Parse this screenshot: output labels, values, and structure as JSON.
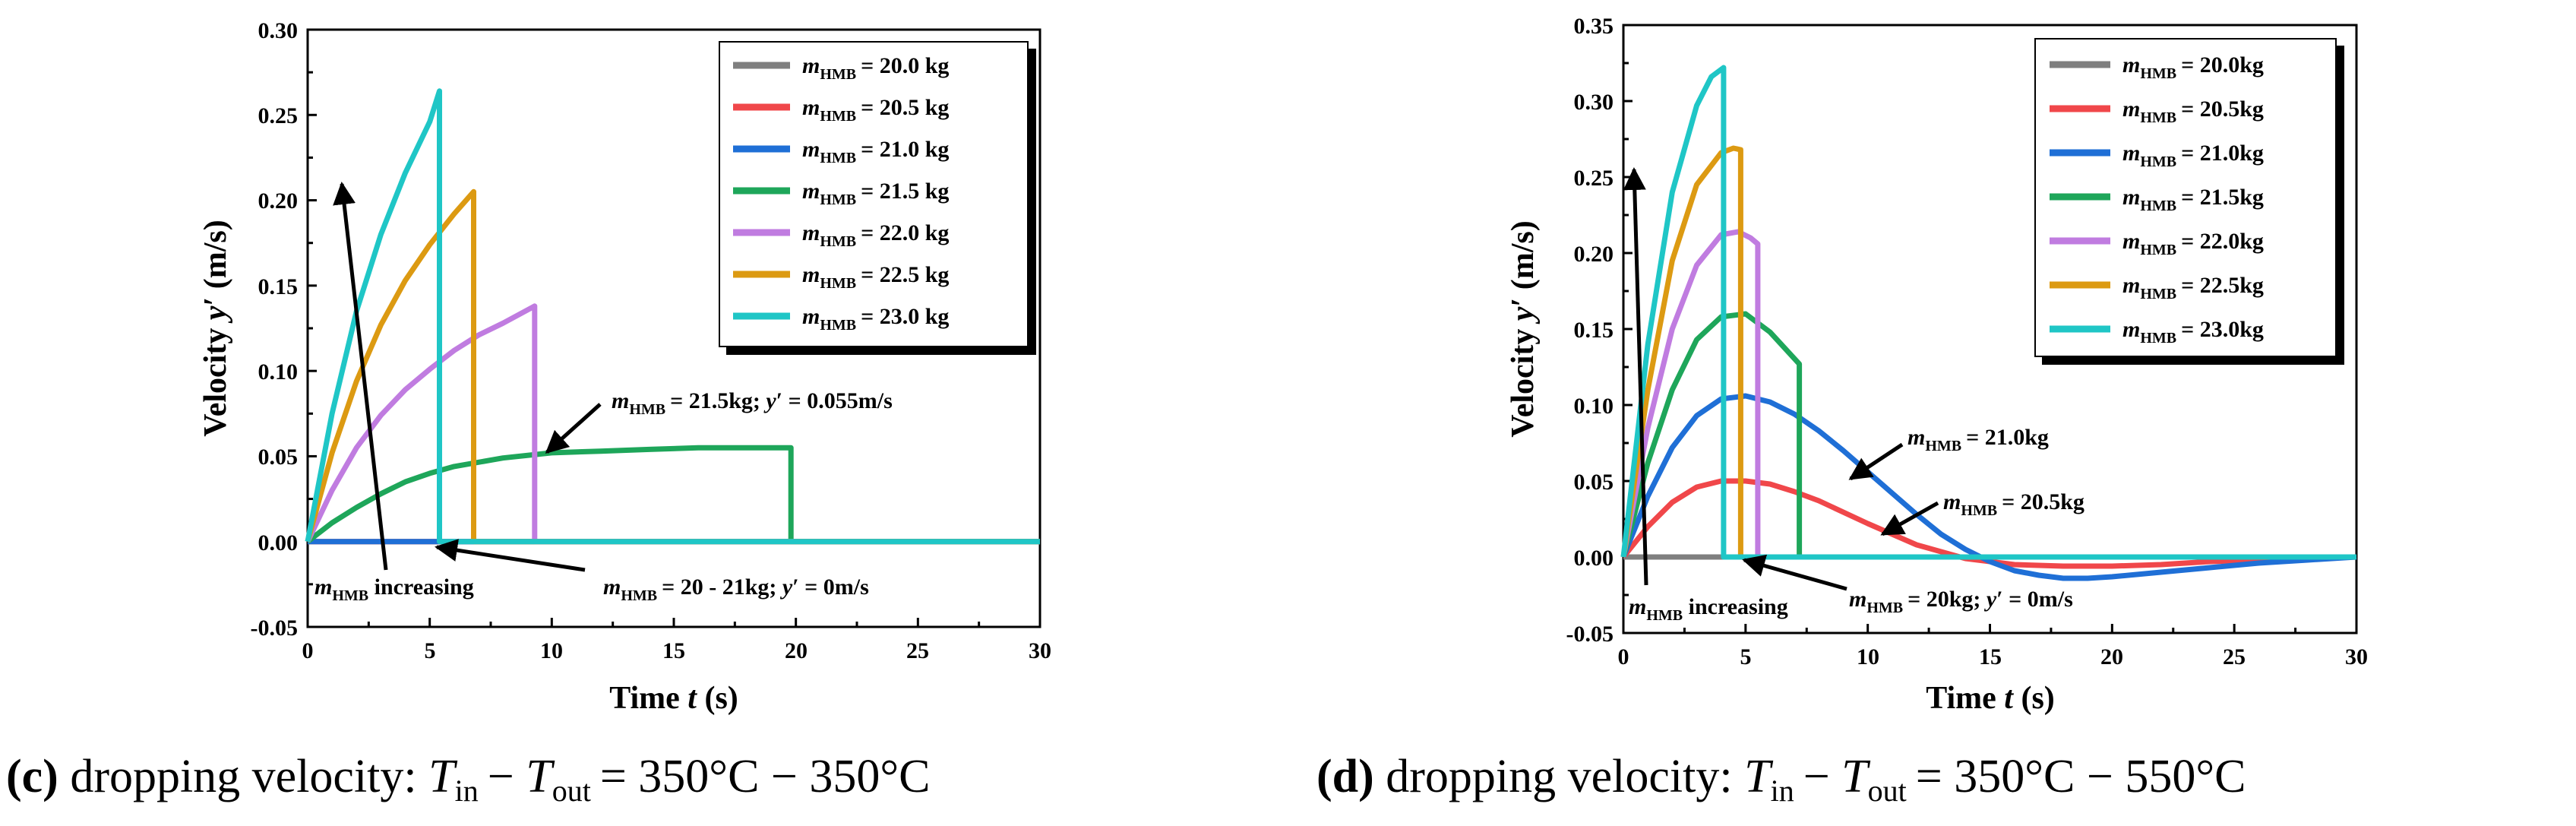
{
  "panels": [
    {
      "id": "c",
      "caption": {
        "letter": "(c)",
        "text": "dropping velocity:",
        "formula_T1": "T",
        "formula_in": "in",
        "formula_minus": "−",
        "formula_T2": "T",
        "formula_out": "out",
        "formula_value": "= 350°C − 350°C"
      },
      "axis_ticks_x": [
        "0",
        "5",
        "10",
        "15",
        "20",
        "25",
        "30"
      ],
      "axis_ticks_y": [
        "-0.05",
        "0.00",
        "0.05",
        "0.10",
        "0.15",
        "0.20",
        "0.25",
        "0.30"
      ],
      "legend": [
        {
          "m": "m",
          "sub": "HMB",
          "value": "= 20.0 kg"
        },
        {
          "m": "m",
          "sub": "HMB",
          "value": "= 20.5 kg"
        },
        {
          "m": "m",
          "sub": "HMB",
          "value": "= 21.0 kg"
        },
        {
          "m": "m",
          "sub": "HMB",
          "value": "= 21.5 kg"
        },
        {
          "m": "m",
          "sub": "HMB",
          "value": "= 22.0 kg"
        },
        {
          "m": "m",
          "sub": "HMB",
          "value": "= 22.5 kg"
        },
        {
          "m": "m",
          "sub": "HMB",
          "value": "= 23.0 kg"
        }
      ],
      "annotations": {
        "a1": {
          "m": "m",
          "sub": "HMB",
          "rest": "= 21.5kg; ",
          "y": "y",
          "prime": "′",
          "tail": " = 0.055m/s"
        },
        "a2": {
          "m": "m",
          "sub": "HMB",
          "rest": "= 20 - 21kg; ",
          "y": "y",
          "prime": "′",
          "tail": " = 0m/s"
        },
        "a3": {
          "m": "m",
          "sub": "HMB",
          "rest": " increasing"
        }
      }
    },
    {
      "id": "d",
      "caption": {
        "letter": "(d)",
        "text": "dropping velocity:",
        "formula_T1": "T",
        "formula_in": "in",
        "formula_minus": "−",
        "formula_T2": "T",
        "formula_out": "out",
        "formula_value": "= 350°C − 550°C"
      },
      "axis_ticks_x": [
        "0",
        "5",
        "10",
        "15",
        "20",
        "25",
        "30"
      ],
      "axis_ticks_y": [
        "-0.05",
        "0.00",
        "0.05",
        "0.10",
        "0.15",
        "0.20",
        "0.25",
        "0.30",
        "0.35"
      ],
      "legend": [
        {
          "m": "m",
          "sub": "HMB",
          "value": "= 20.0kg"
        },
        {
          "m": "m",
          "sub": "HMB",
          "value": "= 20.5kg"
        },
        {
          "m": "m",
          "sub": "HMB",
          "value": "= 21.0kg"
        },
        {
          "m": "m",
          "sub": "HMB",
          "value": "= 21.5kg"
        },
        {
          "m": "m",
          "sub": "HMB",
          "value": "= 22.0kg"
        },
        {
          "m": "m",
          "sub": "HMB",
          "value": "= 22.5kg"
        },
        {
          "m": "m",
          "sub": "HMB",
          "value": "= 23.0kg"
        }
      ],
      "annotations": {
        "a1": {
          "m": "m",
          "sub": "HMB",
          "rest": "= 21.0kg"
        },
        "a2": {
          "m": "m",
          "sub": "HMB",
          "rest": "= 20.5kg"
        },
        "a3": {
          "m": "m",
          "sub": "HMB",
          "rest": "= 20kg; ",
          "y": "y",
          "prime": "′",
          "tail": " = 0m/s"
        },
        "a4": {
          "m": "m",
          "sub": "HMB",
          "rest": " increasing"
        }
      }
    }
  ],
  "axis_labels": {
    "x_word": "Time",
    "x_var": "t",
    "x_unit": "(s)",
    "y_word": "Velocity",
    "y_var": "y",
    "y_prime": "′",
    "y_unit": "(m/s)"
  },
  "colors": {
    "gray": "#7f7f7f",
    "red": "#f0474a",
    "blue": "#1f6fd6",
    "green": "#1ea65a",
    "violet": "#c07ce0",
    "orange": "#dc9a12",
    "cyan": "#1fc6c6"
  },
  "chart_data": [
    {
      "type": "line",
      "panel": "c",
      "title": "(c) dropping velocity: Tin − Tout = 350°C − 350°C",
      "xlabel": "Time t (s)",
      "ylabel": "Velocity y′ (m/s)",
      "xlim": [
        0,
        30
      ],
      "ylim": [
        -0.05,
        0.3
      ],
      "xticks": [
        0,
        5,
        10,
        15,
        20,
        25,
        30
      ],
      "yticks": [
        -0.05,
        0.0,
        0.05,
        0.1,
        0.15,
        0.2,
        0.25,
        0.3
      ],
      "legend_position": "top-right",
      "series": [
        {
          "name": "mHMB = 20.0 kg",
          "color": "#7f7f7f",
          "x": [
            0,
            30
          ],
          "y": [
            0,
            0
          ]
        },
        {
          "name": "mHMB = 20.5 kg",
          "color": "#f0474a",
          "x": [
            0,
            30
          ],
          "y": [
            0,
            0
          ]
        },
        {
          "name": "mHMB = 21.0 kg",
          "color": "#1f6fd6",
          "x": [
            0,
            30
          ],
          "y": [
            0,
            0
          ]
        },
        {
          "name": "mHMB = 21.5 kg",
          "color": "#1ea65a",
          "x": [
            0,
            1,
            2,
            3,
            4,
            5,
            6,
            8,
            10,
            12,
            14,
            16,
            18,
            19.8,
            19.8,
            30
          ],
          "y": [
            0,
            0.011,
            0.02,
            0.028,
            0.035,
            0.04,
            0.044,
            0.049,
            0.052,
            0.053,
            0.054,
            0.055,
            0.055,
            0.055,
            0,
            0
          ]
        },
        {
          "name": "mHMB = 22.0 kg",
          "color": "#c07ce0",
          "x": [
            0,
            1,
            2,
            3,
            4,
            5,
            6,
            7,
            8,
            9.3,
            9.3,
            30
          ],
          "y": [
            0,
            0.03,
            0.055,
            0.074,
            0.089,
            0.101,
            0.112,
            0.121,
            0.128,
            0.138,
            0,
            0
          ]
        },
        {
          "name": "mHMB = 22.5 kg",
          "color": "#dc9a12",
          "x": [
            0,
            1,
            2,
            3,
            4,
            5,
            6,
            6.8,
            6.8,
            30
          ],
          "y": [
            0,
            0.052,
            0.094,
            0.127,
            0.153,
            0.174,
            0.192,
            0.205,
            0,
            0
          ]
        },
        {
          "name": "mHMB = 23.0 kg",
          "color": "#1fc6c6",
          "x": [
            0,
            1,
            2,
            3,
            4,
            5,
            5.4,
            5.4,
            30
          ],
          "y": [
            0,
            0.075,
            0.135,
            0.18,
            0.216,
            0.246,
            0.264,
            0,
            0
          ]
        }
      ],
      "annotations": [
        {
          "text": "mHMB = 21.5kg; y′ = 0.055m/s",
          "x": 9.7,
          "y": 0.053
        },
        {
          "text": "mHMB = 20 - 21kg; y′ = 0m/s",
          "x": 5.5,
          "y": 0.0
        },
        {
          "text": "mHMB increasing",
          "from": [
            3.2,
            -0.02
          ],
          "to": [
            1.3,
            0.205
          ]
        }
      ]
    },
    {
      "type": "line",
      "panel": "d",
      "title": "(d) dropping velocity: Tin − Tout = 350°C − 550°C",
      "xlabel": "Time t (s)",
      "ylabel": "Velocity y′ (m/s)",
      "xlim": [
        0,
        30
      ],
      "ylim": [
        -0.05,
        0.35
      ],
      "xticks": [
        0,
        5,
        10,
        15,
        20,
        25,
        30
      ],
      "yticks": [
        -0.05,
        0.0,
        0.05,
        0.1,
        0.15,
        0.2,
        0.25,
        0.3,
        0.35
      ],
      "legend_position": "top-right",
      "series": [
        {
          "name": "mHMB = 20.0kg",
          "color": "#7f7f7f",
          "x": [
            0,
            30
          ],
          "y": [
            0,
            0
          ]
        },
        {
          "name": "mHMB = 20.5kg",
          "color": "#f0474a",
          "x": [
            0,
            1,
            2,
            3,
            4,
            5,
            6,
            7,
            8,
            10,
            12,
            14,
            16,
            18,
            20,
            22,
            24,
            26,
            28,
            30
          ],
          "y": [
            0,
            0.02,
            0.036,
            0.046,
            0.05,
            0.05,
            0.048,
            0.043,
            0.037,
            0.022,
            0.008,
            -0.001,
            -0.005,
            -0.006,
            -0.006,
            -0.005,
            -0.003,
            -0.002,
            -0.001,
            0
          ]
        },
        {
          "name": "mHMB = 21.0kg",
          "color": "#1f6fd6",
          "x": [
            0,
            1,
            2,
            3,
            4,
            5,
            6,
            7,
            8,
            9,
            10,
            11,
            12,
            13,
            14,
            15,
            16,
            17,
            18,
            19,
            20,
            22,
            24,
            26,
            28,
            30
          ],
          "y": [
            0,
            0.04,
            0.072,
            0.093,
            0.104,
            0.106,
            0.102,
            0.094,
            0.083,
            0.07,
            0.056,
            0.042,
            0.028,
            0.015,
            0.005,
            -0.003,
            -0.009,
            -0.012,
            -0.014,
            -0.014,
            -0.013,
            -0.01,
            -0.007,
            -0.004,
            -0.002,
            0
          ]
        },
        {
          "name": "mHMB = 21.5kg",
          "color": "#1ea65a",
          "x": [
            0,
            1,
            2,
            3,
            4,
            5,
            6,
            7.2,
            7.2,
            30
          ],
          "y": [
            0,
            0.062,
            0.11,
            0.143,
            0.158,
            0.16,
            0.148,
            0.127,
            0,
            0
          ]
        },
        {
          "name": "mHMB = 22.0kg",
          "color": "#c07ce0",
          "x": [
            0,
            1,
            2,
            3,
            4,
            4.7,
            5.2,
            5.5,
            5.5,
            30
          ],
          "y": [
            0,
            0.085,
            0.15,
            0.192,
            0.212,
            0.214,
            0.21,
            0.206,
            0,
            0
          ]
        },
        {
          "name": "mHMB = 22.5kg",
          "color": "#dc9a12",
          "x": [
            0,
            1,
            2,
            3,
            4,
            4.5,
            4.8,
            4.8,
            30
          ],
          "y": [
            0,
            0.11,
            0.195,
            0.245,
            0.266,
            0.269,
            0.268,
            0,
            0
          ]
        },
        {
          "name": "mHMB = 23.0kg",
          "color": "#1fc6c6",
          "x": [
            0,
            1,
            2,
            3,
            3.6,
            4.1,
            4.1,
            30
          ],
          "y": [
            0,
            0.14,
            0.24,
            0.297,
            0.316,
            0.322,
            0,
            0
          ]
        }
      ],
      "annotations": [
        {
          "text": "mHMB = 21.0kg",
          "x": 9.4,
          "y": 0.052
        },
        {
          "text": "mHMB = 20.5kg",
          "x": 10.6,
          "y": 0.013
        },
        {
          "text": "mHMB = 20kg; y′ = 0m/s",
          "x": 4.8,
          "y": 0.0
        },
        {
          "text": "mHMB increasing",
          "from": [
            1.0,
            -0.022
          ],
          "to": [
            0.5,
            0.258
          ]
        }
      ]
    }
  ]
}
